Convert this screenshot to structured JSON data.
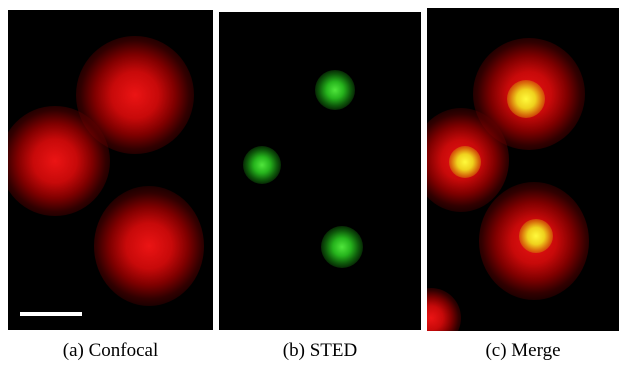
{
  "panels": [
    {
      "caption": "(a) Confocal"
    },
    {
      "caption": "(b) STED"
    },
    {
      "caption": "(c) Merge"
    }
  ],
  "colors": {
    "confocal_channel": "#e01414",
    "sted_channel": "#40d030",
    "merge_overlap": "#f5e83a",
    "background": "#000000",
    "scale_bar": "#ffffff"
  }
}
